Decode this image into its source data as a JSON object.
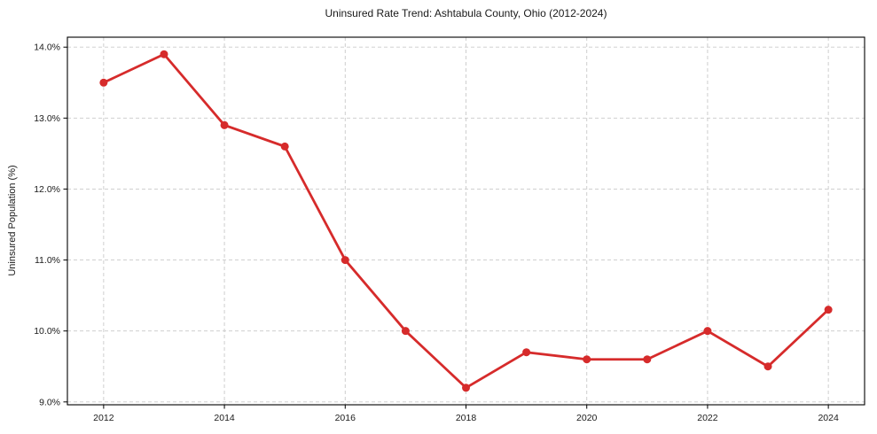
{
  "page": {
    "title": "Uninsured Rate Trend: Ashtabula County, Ohio (2012-2024)"
  },
  "chart_data": {
    "type": "line",
    "title": "Uninsured Rate Trend: Ashtabula County, Ohio (2012-2024)",
    "xlabel": "",
    "ylabel": "Uninsured Population (%)",
    "x": [
      2012,
      2013,
      2014,
      2015,
      2016,
      2017,
      2018,
      2019,
      2020,
      2021,
      2022,
      2023,
      2024
    ],
    "series": [
      {
        "name": "Uninsured Rate",
        "values": [
          13.5,
          13.9,
          12.9,
          12.6,
          11.0,
          10.0,
          9.2,
          9.7,
          9.6,
          9.6,
          10.0,
          9.5,
          10.3
        ]
      }
    ],
    "xlim": [
      2011.4,
      2024.6
    ],
    "ylim": [
      8.96,
      14.14
    ],
    "xticks": {
      "values": [
        2012,
        2014,
        2016,
        2018,
        2020,
        2022,
        2024
      ],
      "labels": [
        "2012",
        "2014",
        "2016",
        "2018",
        "2020",
        "2022",
        "2024"
      ]
    },
    "yticks": {
      "values": [
        9.0,
        10.0,
        11.0,
        12.0,
        13.0,
        14.0
      ],
      "labels": [
        "9.0%",
        "10.0%",
        "11.0%",
        "12.0%",
        "13.0%",
        "14.0%"
      ]
    },
    "grid": true,
    "legend_position": "none",
    "colors": {
      "line": "#d62b2b",
      "marker": "#d62b2b",
      "grid": "#c9c9c9",
      "spine": "#000000",
      "text": "#1a1a1a",
      "background": "#ffffff"
    }
  }
}
